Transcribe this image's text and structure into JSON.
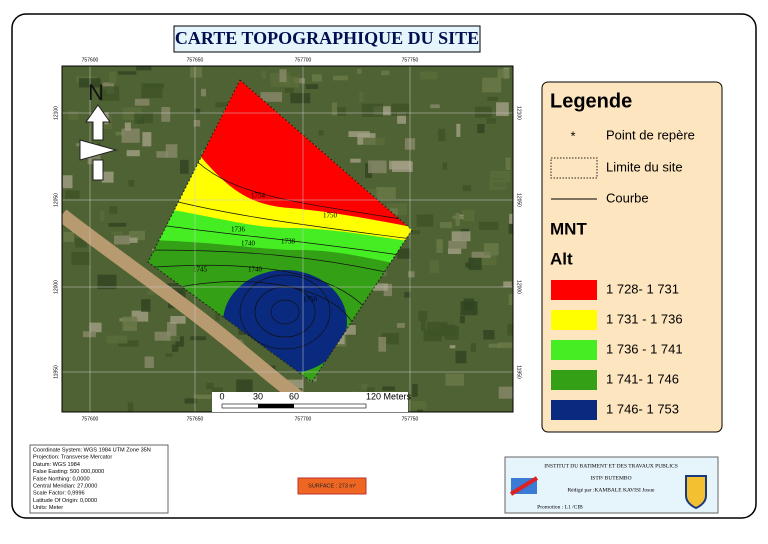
{
  "title": "CARTE TOPOGRAPHIQUE DU SITE",
  "map": {
    "north": "N",
    "grid_labels": {
      "top": [
        "757600",
        "757650",
        "757700",
        "757750"
      ],
      "bottom": [
        "757600",
        "757650",
        "757700",
        "757750"
      ],
      "left": [
        "12100",
        "12050",
        "12000",
        "11950"
      ],
      "right": [
        "12100",
        "12050",
        "12000",
        "11950"
      ]
    },
    "contour_labels": [
      "1754",
      "1750",
      "1736",
      "1738",
      "1740",
      "1745",
      "1740",
      "1750"
    ],
    "scale_bar": [
      "0",
      "30",
      "60",
      "120 Meters"
    ]
  },
  "legend": {
    "title": "Legende",
    "symbols": [
      "Point de repère",
      "Limite du site",
      "Courbe"
    ],
    "mnt": "MNT",
    "alt": "Alt",
    "classes": [
      {
        "label": "1 728- 1 731",
        "color": "#ff0000"
      },
      {
        "label": "1 731 - 1 736",
        "color": "#ffff00"
      },
      {
        "label": "1 736 - 1 741",
        "color": "#44ee22"
      },
      {
        "label": "1 741- 1 746",
        "color": "#33a015"
      },
      {
        "label": "1 746- 1 753",
        "color": "#0a2a80"
      }
    ]
  },
  "coordinate_info": [
    "Coordinate System: WGS 1984 UTM Zone 35N",
    "Projection: Transverse Mercator",
    "Datum: WGS 1984",
    "False Easting: 500 000,0000",
    "False Northing: 0,0000",
    "Central Meridian: 27,0000",
    "Scale Factor: 0,9996",
    "Latitude Of Origin: 0,0000",
    "Units: Meter"
  ],
  "surface": "SURFACE : 273 m²",
  "institute": {
    "name": "INSTITUT DU BATIMENT ET DES TRAVAUX PUBLICS",
    "school": "ISTP/ BUTEMBO",
    "author": "Rédigé par :KAMBALE KAVISI Josue",
    "promotion": "Promotion : L1 /CIB"
  }
}
